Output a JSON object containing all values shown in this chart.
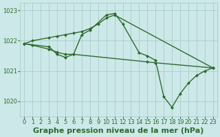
{
  "series": [
    {
      "x": [
        0,
        1,
        2,
        3,
        4,
        5,
        6,
        7,
        8,
        9,
        10,
        11,
        23
      ],
      "y": [
        1021.9,
        1022.0,
        1022.05,
        1022.1,
        1022.15,
        1022.2,
        1022.25,
        1022.3,
        1022.4,
        1022.55,
        1022.75,
        1022.85,
        1021.1
      ]
    },
    {
      "x": [
        0,
        3,
        4,
        5,
        6,
        7,
        8,
        10,
        11,
        12,
        14,
        15,
        16,
        17,
        18,
        19,
        20,
        21,
        22,
        23
      ],
      "y": [
        1021.9,
        1021.8,
        1021.55,
        1021.45,
        1021.55,
        1022.2,
        1022.35,
        1022.85,
        1022.9,
        1022.55,
        1021.6,
        1021.5,
        1021.35,
        1020.15,
        1019.8,
        1020.25,
        1020.6,
        1020.85,
        1021.0,
        1021.1
      ]
    },
    {
      "x": [
        0,
        1,
        2,
        3,
        4,
        5,
        6,
        7,
        8,
        9,
        10,
        11,
        12,
        13,
        14,
        15,
        16,
        17,
        18,
        19,
        20,
        21,
        22,
        23
      ],
      "y": [
        1021.9,
        1021.85,
        1021.8,
        1021.75,
        1021.7,
        1021.65,
        1021.55,
        1021.52,
        1021.5,
        1021.48,
        1021.45,
        1021.42,
        1021.4,
        1021.38,
        1021.35,
        1021.3,
        1021.28,
        1021.25,
        1021.22,
        1021.2,
        1021.18,
        1021.1,
        1021.1,
        1021.1
      ]
    }
  ],
  "xlim": [
    -0.5,
    23.5
  ],
  "ylim": [
    1019.5,
    1023.25
  ],
  "yticks": [
    1020,
    1021,
    1022,
    1023
  ],
  "xticks": [
    0,
    1,
    2,
    3,
    4,
    5,
    6,
    7,
    8,
    9,
    10,
    11,
    12,
    13,
    14,
    15,
    16,
    17,
    18,
    19,
    20,
    21,
    22,
    23
  ],
  "xlabel": "Graphe pression niveau de la mer (hPa)",
  "bg_color": "#cce8e8",
  "grid_color": "#aacccc",
  "line_color": "#2d6a2d",
  "tick_fontsize": 6.0,
  "xlabel_fontsize": 8.0
}
